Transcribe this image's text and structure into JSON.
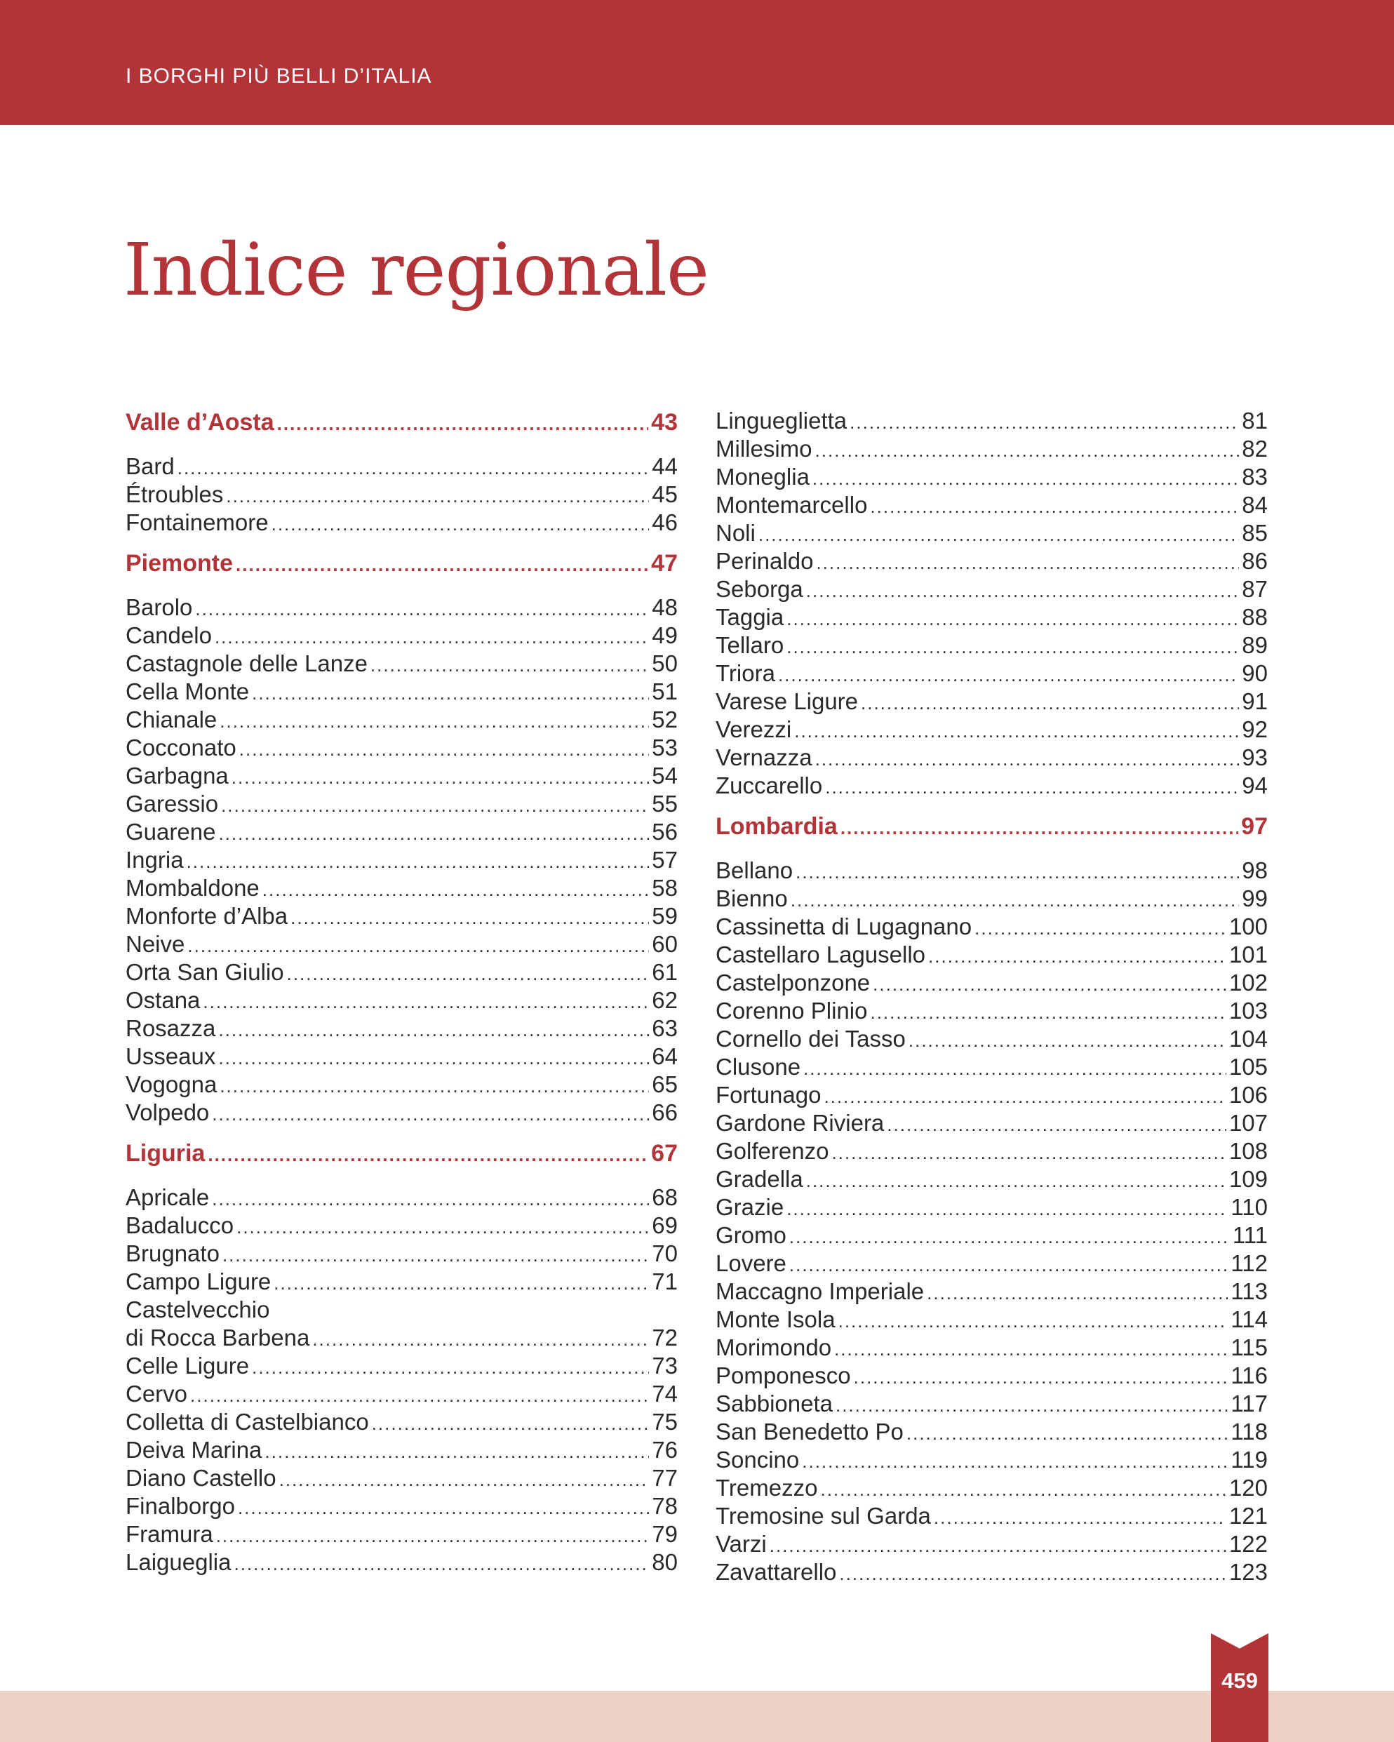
{
  "header": {
    "running_head": "I BORGHI PIÙ BELLI D’ITALIA"
  },
  "title": "Indice regionale",
  "folio": "459",
  "colors": {
    "accent": "#b23438",
    "footer_band": "#ebd1c6",
    "text": "#2a2a2a"
  },
  "left": {
    "valle_daosta": {
      "name": "Valle d’Aosta",
      "page": "43"
    },
    "valle_daosta_items": [
      {
        "name": "Bard",
        "page": "44"
      },
      {
        "name": "Étroubles",
        "page": "45"
      },
      {
        "name": "Fontainemore",
        "page": "46"
      }
    ],
    "piemonte": {
      "name": "Piemonte",
      "page": "47"
    },
    "piemonte_items": [
      {
        "name": "Barolo",
        "page": "48"
      },
      {
        "name": "Candelo",
        "page": "49"
      },
      {
        "name": "Castagnole delle Lanze",
        "page": "50"
      },
      {
        "name": "Cella Monte",
        "page": "51"
      },
      {
        "name": "Chianale",
        "page": "52"
      },
      {
        "name": "Cocconato",
        "page": "53"
      },
      {
        "name": "Garbagna",
        "page": "54"
      },
      {
        "name": "Garessio",
        "page": "55"
      },
      {
        "name": "Guarene",
        "page": "56"
      },
      {
        "name": "Ingria",
        "page": "57"
      },
      {
        "name": "Mombaldone",
        "page": "58"
      },
      {
        "name": "Monforte d’Alba",
        "page": "59"
      },
      {
        "name": "Neive",
        "page": "60"
      },
      {
        "name": "Orta San Giulio",
        "page": "61"
      },
      {
        "name": "Ostana",
        "page": "62"
      },
      {
        "name": "Rosazza",
        "page": "63"
      },
      {
        "name": "Usseaux",
        "page": "64"
      },
      {
        "name": "Vogogna",
        "page": "65"
      },
      {
        "name": "Volpedo",
        "page": "66"
      }
    ],
    "liguria": {
      "name": "Liguria",
      "page": "67"
    },
    "liguria_items": [
      {
        "name": "Apricale",
        "page": "68"
      },
      {
        "name": "Badalucco",
        "page": "69"
      },
      {
        "name": "Brugnato",
        "page": "70"
      },
      {
        "name": "Campo Ligure",
        "page": "71"
      },
      {
        "name": "Castelvecchio",
        "page": ""
      },
      {
        "name": "di Rocca Barbena",
        "page": "72"
      },
      {
        "name": "Celle Ligure",
        "page": "73"
      },
      {
        "name": "Cervo",
        "page": "74"
      },
      {
        "name": "Colletta di Castelbianco",
        "page": "75"
      },
      {
        "name": "Deiva Marina",
        "page": "76"
      },
      {
        "name": "Diano Castello",
        "page": "77"
      },
      {
        "name": "Finalborgo",
        "page": "78"
      },
      {
        "name": "Framura",
        "page": "79"
      },
      {
        "name": "Laigueglia",
        "page": "80"
      }
    ]
  },
  "right": {
    "liguria_items": [
      {
        "name": "Lingueglietta",
        "page": "81"
      },
      {
        "name": "Millesimo",
        "page": "82"
      },
      {
        "name": "Moneglia",
        "page": "83"
      },
      {
        "name": "Montemarcello",
        "page": "84"
      },
      {
        "name": "Noli",
        "page": "85"
      },
      {
        "name": "Perinaldo",
        "page": "86"
      },
      {
        "name": "Seborga",
        "page": "87"
      },
      {
        "name": "Taggia",
        "page": "88"
      },
      {
        "name": "Tellaro",
        "page": "89"
      },
      {
        "name": "Triora",
        "page": "90"
      },
      {
        "name": "Varese Ligure",
        "page": "91"
      },
      {
        "name": "Verezzi",
        "page": "92"
      },
      {
        "name": "Vernazza",
        "page": "93"
      },
      {
        "name": "Zuccarello",
        "page": "94"
      }
    ],
    "lombardia": {
      "name": "Lombardia",
      "page": "97"
    },
    "lombardia_items": [
      {
        "name": "Bellano",
        "page": "98"
      },
      {
        "name": "Bienno",
        "page": "99"
      },
      {
        "name": "Cassinetta di Lugagnano",
        "page": "100"
      },
      {
        "name": "Castellaro Lagusello",
        "page": "101"
      },
      {
        "name": "Castelponzone",
        "page": "102"
      },
      {
        "name": "Corenno Plinio",
        "page": "103"
      },
      {
        "name": "Cornello dei Tasso",
        "page": "104"
      },
      {
        "name": "Clusone",
        "page": "105"
      },
      {
        "name": "Fortunago",
        "page": "106"
      },
      {
        "name": "Gardone Riviera",
        "page": "107"
      },
      {
        "name": "Golferenzo",
        "page": "108"
      },
      {
        "name": "Gradella",
        "page": "109"
      },
      {
        "name": "Grazie",
        "page": "110"
      },
      {
        "name": "Gromo",
        "page": "111"
      },
      {
        "name": "Lovere",
        "page": "112"
      },
      {
        "name": "Maccagno Imperiale",
        "page": "113"
      },
      {
        "name": "Monte Isola",
        "page": "114"
      },
      {
        "name": "Morimondo",
        "page": "115"
      },
      {
        "name": "Pomponesco",
        "page": "116"
      },
      {
        "name": "Sabbioneta",
        "page": "117"
      },
      {
        "name": "San Benedetto Po",
        "page": "118"
      },
      {
        "name": "Soncino",
        "page": "119"
      },
      {
        "name": "Tremezzo",
        "page": "120"
      },
      {
        "name": "Tremosine sul Garda",
        "page": "121"
      },
      {
        "name": "Varzi",
        "page": "122"
      },
      {
        "name": "Zavattarello",
        "page": "123"
      }
    ]
  }
}
